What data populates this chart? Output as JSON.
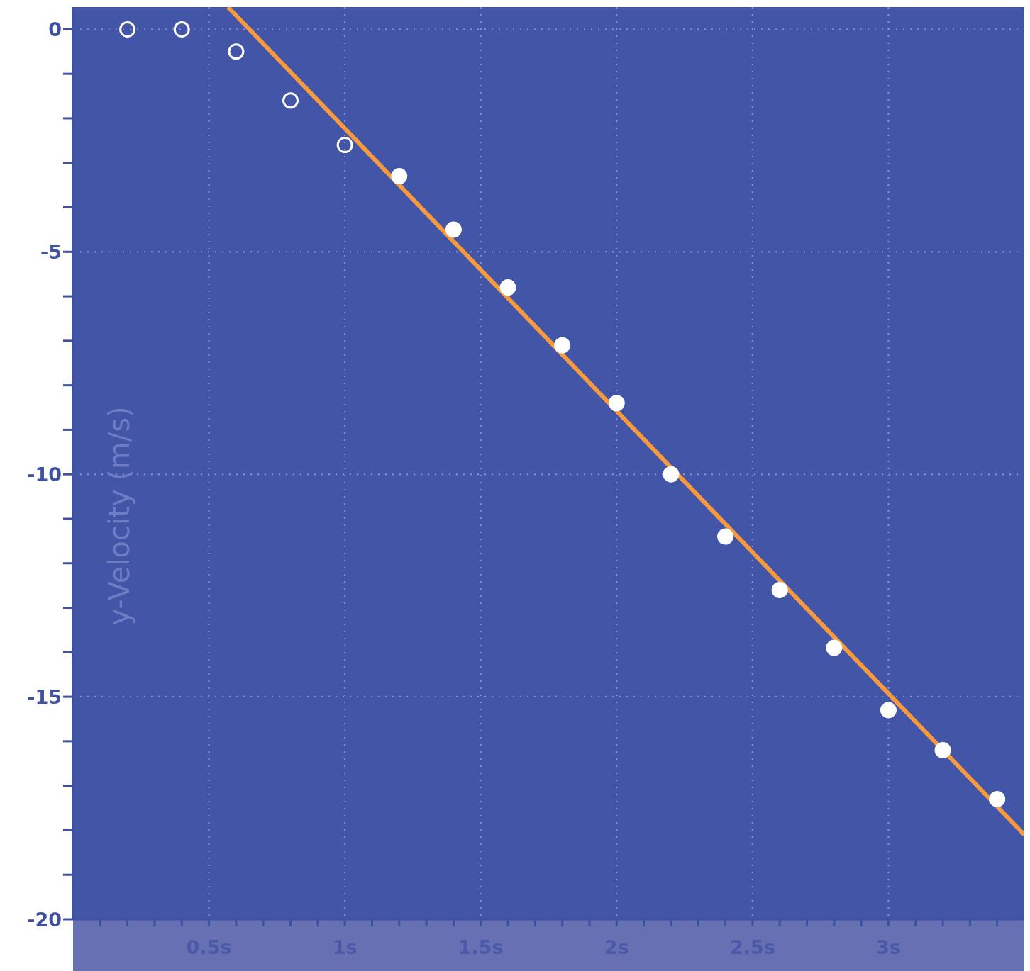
{
  "chart_data": {
    "type": "scatter",
    "ylabel": "y-Velocity (m/s)",
    "marker": "circle",
    "grid": true,
    "xlim": [
      0,
      3.5
    ],
    "ylim": [
      -20,
      0.5
    ],
    "xticks": [
      {
        "value": 0.1,
        "label": null
      },
      {
        "value": 0.2,
        "label": null
      },
      {
        "value": 0.3,
        "label": null
      },
      {
        "value": 0.4,
        "label": null
      },
      {
        "value": 0.5,
        "label": "0.5s"
      },
      {
        "value": 0.6,
        "label": null
      },
      {
        "value": 0.7,
        "label": null
      },
      {
        "value": 0.8,
        "label": null
      },
      {
        "value": 0.9,
        "label": null
      },
      {
        "value": 1,
        "label": "1s"
      },
      {
        "value": 1.1,
        "label": null
      },
      {
        "value": 1.2,
        "label": null
      },
      {
        "value": 1.3,
        "label": null
      },
      {
        "value": 1.4,
        "label": null
      },
      {
        "value": 1.5,
        "label": "1.5s"
      },
      {
        "value": 1.6,
        "label": null
      },
      {
        "value": 1.7,
        "label": null
      },
      {
        "value": 1.8,
        "label": null
      },
      {
        "value": 1.9,
        "label": null
      },
      {
        "value": 2,
        "label": "2s"
      },
      {
        "value": 2.1,
        "label": null
      },
      {
        "value": 2.2,
        "label": null
      },
      {
        "value": 2.3,
        "label": null
      },
      {
        "value": 2.4,
        "label": null
      },
      {
        "value": 2.5,
        "label": "2.5s"
      },
      {
        "value": 2.6,
        "label": null
      },
      {
        "value": 2.7,
        "label": null
      },
      {
        "value": 2.8,
        "label": null
      },
      {
        "value": 2.9,
        "label": null
      },
      {
        "value": 3,
        "label": "3s"
      },
      {
        "value": 3.1,
        "label": null
      },
      {
        "value": 3.2,
        "label": null
      },
      {
        "value": 3.3,
        "label": null
      },
      {
        "value": 3.4,
        "label": null
      }
    ],
    "yticks": [
      -20,
      {
        "value": -19,
        "label": null
      },
      {
        "value": -18,
        "label": null
      },
      {
        "value": -17,
        "label": null
      },
      {
        "value": -16,
        "label": null
      },
      -15,
      {
        "value": -14,
        "label": null
      },
      {
        "value": -13,
        "label": null
      },
      {
        "value": -12,
        "label": null
      },
      {
        "value": -11,
        "label": null
      },
      -10,
      {
        "value": -9,
        "label": null
      },
      {
        "value": -8,
        "label": null
      },
      {
        "value": -7,
        "label": null
      },
      {
        "value": -6,
        "label": null
      },
      -5,
      {
        "value": -4,
        "label": null
      },
      {
        "value": -3,
        "label": null
      },
      {
        "value": -2,
        "label": null
      },
      {
        "value": -1,
        "label": null
      },
      0
    ],
    "series": [
      {
        "color": "#ffffff",
        "x": [
          0.2,
          0.4,
          0.6,
          0.8,
          1.0
        ],
        "values": [
          0,
          0,
          -0.5,
          -1.6,
          -2.6
        ]
      },
      {
        "color": "#ffffff",
        "x": [
          1.2,
          1.4,
          1.6,
          1.8,
          2.0,
          2.2,
          2.4,
          2.6,
          2.8,
          3.0,
          3.2,
          3.4
        ],
        "values": [
          -3.3,
          -4.5,
          -5.8,
          -7.1,
          -8.4,
          -10.0,
          -11.4,
          -12.6,
          -13.9,
          -15.3,
          -16.2,
          -17.3
        ]
      },
      {
        "type": "line",
        "marker": "none",
        "color": "#f79a3e",
        "x": [
          0.57,
          3.5
        ],
        "values": [
          0.5,
          -18.1
        ]
      }
    ]
  }
}
